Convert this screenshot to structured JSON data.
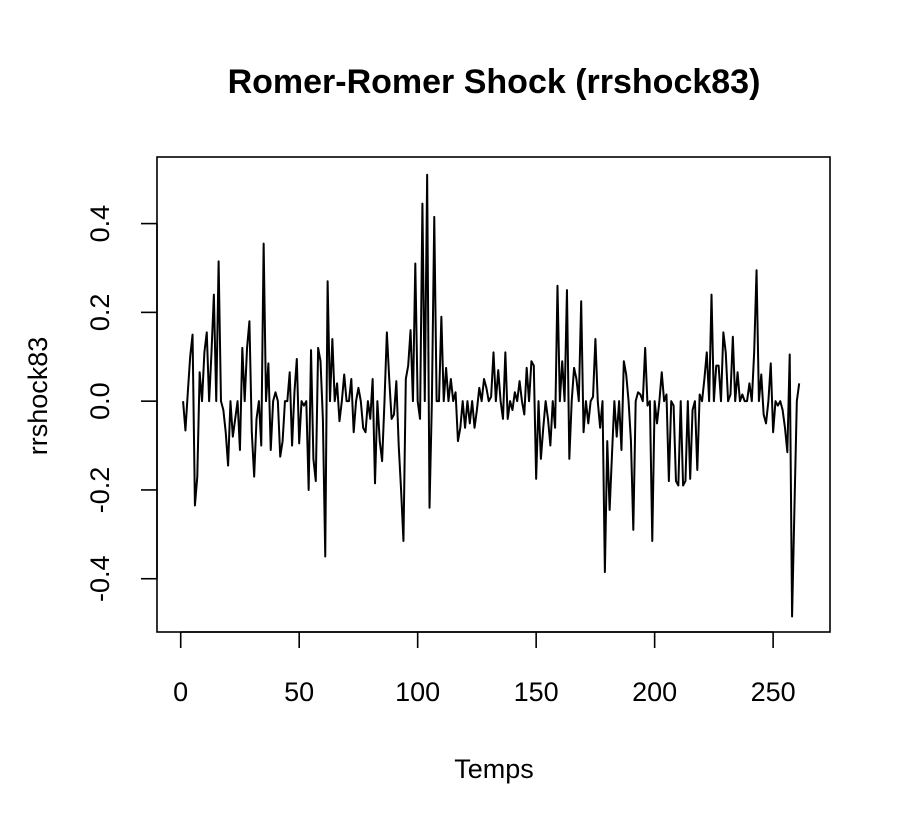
{
  "chart_data": {
    "type": "line",
    "title": "Romer-Romer Shock (rrshock83)",
    "xlabel": "Temps",
    "ylabel": "rrshock83",
    "xlim": [
      -10,
      274
    ],
    "ylim": [
      -0.52,
      0.55
    ],
    "x_ticks": [
      0,
      50,
      100,
      150,
      200,
      250
    ],
    "x_tick_labels": [
      "0",
      "50",
      "100",
      "150",
      "200",
      "250"
    ],
    "y_ticks": [
      -0.4,
      -0.2,
      0.0,
      0.2,
      0.4
    ],
    "y_tick_labels": [
      "-0.4",
      "-0.2",
      "0.0",
      "0.2",
      "0.4"
    ],
    "grid": false,
    "line_color": "#000000",
    "series": [
      {
        "x_start": 1,
        "x_step": 1,
        "values": [
          0.0,
          -0.066,
          0.02,
          0.1,
          0.15,
          -0.235,
          -0.17,
          0.065,
          0.0,
          0.11,
          0.155,
          0.0,
          0.11,
          0.24,
          0.0,
          0.315,
          0.0,
          -0.02,
          -0.07,
          -0.145,
          0.0,
          -0.08,
          -0.04,
          0.0,
          -0.11,
          0.12,
          0.0,
          0.12,
          0.18,
          -0.07,
          -0.17,
          -0.04,
          0.0,
          -0.1,
          0.355,
          0.0,
          0.085,
          -0.11,
          0.0,
          0.02,
          0.0,
          -0.125,
          -0.09,
          0.0,
          0.0,
          0.065,
          -0.1,
          0.02,
          0.095,
          -0.095,
          0.0,
          -0.01,
          0.0,
          -0.2,
          0.115,
          -0.13,
          -0.18,
          0.12,
          0.09,
          -0.04,
          -0.35,
          0.27,
          0.0,
          0.14,
          0.0,
          0.04,
          -0.045,
          0.0,
          0.06,
          0.0,
          0.0,
          0.05,
          -0.07,
          0.0,
          0.03,
          0.0,
          -0.06,
          -0.07,
          0.0,
          -0.04,
          0.05,
          -0.185,
          0.0,
          -0.09,
          -0.135,
          0.0,
          0.155,
          0.05,
          -0.04,
          -0.03,
          0.045,
          -0.1,
          -0.2,
          -0.315,
          0.05,
          0.08,
          0.16,
          0.0,
          0.31,
          0.0,
          -0.04,
          0.445,
          0.0,
          0.51,
          -0.24,
          0.0,
          0.415,
          0.0,
          0.0,
          0.19,
          0.0,
          0.075,
          0.0,
          0.05,
          0.0,
          0.02,
          -0.09,
          -0.06,
          0.0,
          -0.06,
          0.0,
          -0.05,
          0.0,
          -0.06,
          -0.02,
          0.03,
          0.0,
          0.05,
          0.03,
          0.0,
          0.01,
          0.11,
          0.0,
          0.07,
          0.0,
          -0.04,
          0.11,
          -0.04,
          0.0,
          -0.02,
          0.02,
          0.0,
          0.045,
          0.0,
          -0.03,
          0.075,
          0.0,
          0.09,
          0.08,
          -0.175,
          0.0,
          -0.13,
          -0.06,
          0.0,
          -0.04,
          -0.1,
          0.0,
          -0.06,
          0.26,
          0.0,
          0.09,
          0.0,
          0.25,
          -0.13,
          0.0,
          0.075,
          0.05,
          0.0,
          0.225,
          -0.07,
          0.0,
          -0.05,
          0.0,
          0.01,
          0.14,
          0.0,
          -0.06,
          0.0,
          -0.385,
          -0.09,
          -0.245,
          -0.12,
          0.0,
          -0.08,
          0.0,
          -0.11,
          0.09,
          0.06,
          0.0,
          -0.09,
          -0.29,
          0.0,
          0.02,
          0.015,
          0.0,
          0.12,
          -0.01,
          0.0,
          -0.315,
          0.0,
          -0.05,
          0.0,
          0.065,
          0.0,
          0.015,
          -0.18,
          0.0,
          -0.01,
          -0.18,
          -0.19,
          0.0,
          -0.19,
          -0.18,
          0.0,
          -0.175,
          -0.02,
          0.0,
          -0.155,
          0.015,
          0.0,
          0.05,
          0.11,
          0.0,
          0.24,
          0.0,
          0.08,
          0.08,
          0.0,
          0.155,
          0.11,
          0.0,
          0.015,
          0.145,
          0.0,
          0.065,
          0.0,
          0.015,
          0.0,
          0.0,
          0.04,
          0.0,
          0.11,
          0.295,
          0.0,
          0.06,
          -0.03,
          -0.05,
          0.0,
          0.085,
          -0.07,
          0.0,
          -0.01,
          0.0,
          -0.02,
          -0.06,
          -0.115,
          0.105,
          -0.485,
          -0.24,
          0.0,
          0.04
        ]
      }
    ]
  }
}
